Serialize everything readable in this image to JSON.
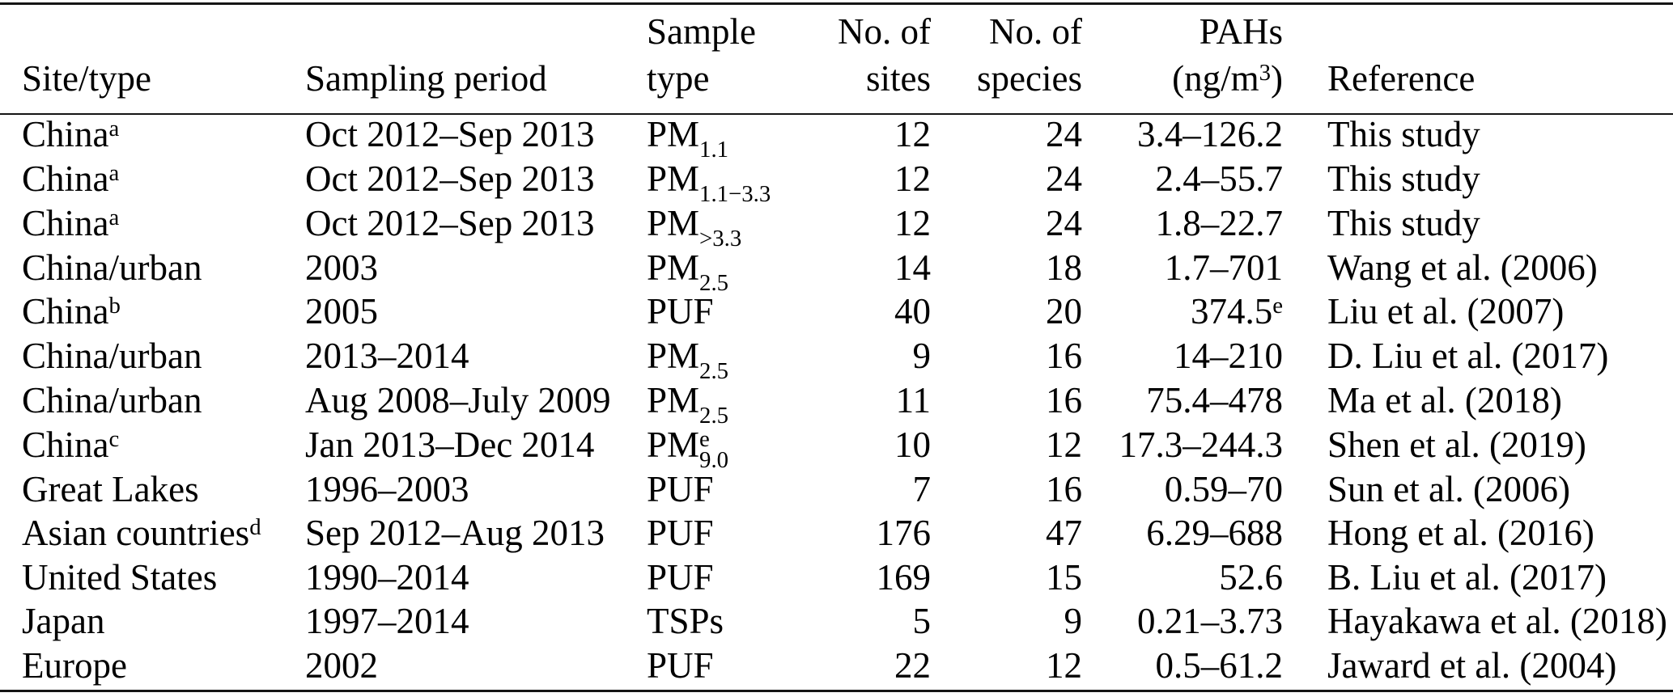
{
  "colors": {
    "text": "#000000",
    "rule": "#151515",
    "background": "#ffffff"
  },
  "table": {
    "columns": [
      {
        "id": "site",
        "line1": "",
        "line2": "Site/type",
        "align": "left"
      },
      {
        "id": "period",
        "line1": "",
        "line2": "Sampling period",
        "align": "left"
      },
      {
        "id": "sample",
        "line1": "Sample",
        "line2": "type",
        "align": "left"
      },
      {
        "id": "sites",
        "line1": "No. of",
        "line2": "sites",
        "align": "right"
      },
      {
        "id": "species",
        "line1": "No. of",
        "line2": "species",
        "align": "right"
      },
      {
        "id": "pahs",
        "line1": "PAHs",
        "line2_pre": "(ng/m",
        "line2_sup": "3",
        "line2_post": ")",
        "align": "right"
      },
      {
        "id": "reference",
        "line1": "",
        "line2": "Reference",
        "align": "left"
      }
    ],
    "rows": [
      {
        "site": {
          "text": "China",
          "sup": "a"
        },
        "period": "Oct 2012–Sep 2013",
        "sample": {
          "base": "PM",
          "sup": "",
          "sub": "1.1"
        },
        "sites": "12",
        "species": "24",
        "pahs": {
          "text": "3.4–126.2",
          "sup": ""
        },
        "reference": "This study"
      },
      {
        "site": {
          "text": "China",
          "sup": "a"
        },
        "period": "Oct 2012–Sep 2013",
        "sample": {
          "base": "PM",
          "sup": "",
          "sub": "1.1−3.3"
        },
        "sites": "12",
        "species": "24",
        "pahs": {
          "text": "2.4–55.7",
          "sup": ""
        },
        "reference": "This study"
      },
      {
        "site": {
          "text": "China",
          "sup": "a"
        },
        "period": "Oct 2012–Sep 2013",
        "sample": {
          "base": "PM",
          "sup": "",
          "sub": ">3.3"
        },
        "sites": "12",
        "species": "24",
        "pahs": {
          "text": "1.8–22.7",
          "sup": ""
        },
        "reference": "This study"
      },
      {
        "site": {
          "text": "China/urban",
          "sup": ""
        },
        "period": "2003",
        "sample": {
          "base": "PM",
          "sup": "",
          "sub": "2.5"
        },
        "sites": "14",
        "species": "18",
        "pahs": {
          "text": "1.7–701",
          "sup": ""
        },
        "reference": "Wang et al. (2006)"
      },
      {
        "site": {
          "text": "China",
          "sup": "b"
        },
        "period": "2005",
        "sample": {
          "base": "PUF",
          "sup": "",
          "sub": ""
        },
        "sites": "40",
        "species": "20",
        "pahs": {
          "text": "374.5",
          "sup": "e"
        },
        "reference": "Liu et al. (2007)"
      },
      {
        "site": {
          "text": "China/urban",
          "sup": ""
        },
        "period": "2013–2014",
        "sample": {
          "base": "PM",
          "sup": "",
          "sub": "2.5"
        },
        "sites": "9",
        "species": "16",
        "pahs": {
          "text": "14–210",
          "sup": ""
        },
        "reference": "D. Liu et al. (2017)"
      },
      {
        "site": {
          "text": "China/urban",
          "sup": ""
        },
        "period": "Aug 2008–July 2009",
        "sample": {
          "base": "PM",
          "sup": "",
          "sub": "2.5"
        },
        "sites": "11",
        "species": "16",
        "pahs": {
          "text": "75.4–478",
          "sup": ""
        },
        "reference": "Ma et al. (2018)"
      },
      {
        "site": {
          "text": "China",
          "sup": "c"
        },
        "period": "Jan 2013–Dec 2014",
        "sample": {
          "base": "PM",
          "sup": "e",
          "sub": "9.0"
        },
        "sites": "10",
        "species": "12",
        "pahs": {
          "text": "17.3–244.3",
          "sup": ""
        },
        "reference": "Shen et al. (2019)"
      },
      {
        "site": {
          "text": "Great Lakes",
          "sup": ""
        },
        "period": "1996–2003",
        "sample": {
          "base": "PUF",
          "sup": "",
          "sub": ""
        },
        "sites": "7",
        "species": "16",
        "pahs": {
          "text": "0.59–70",
          "sup": ""
        },
        "reference": "Sun et al. (2006)"
      },
      {
        "site": {
          "text": "Asian countries",
          "sup": "d"
        },
        "period": "Sep 2012–Aug 2013",
        "sample": {
          "base": "PUF",
          "sup": "",
          "sub": ""
        },
        "sites": "176",
        "species": "47",
        "pahs": {
          "text": "6.29–688",
          "sup": ""
        },
        "reference": "Hong et al. (2016)"
      },
      {
        "site": {
          "text": "United States",
          "sup": ""
        },
        "period": "1990–2014",
        "sample": {
          "base": "PUF",
          "sup": "",
          "sub": ""
        },
        "sites": "169",
        "species": "15",
        "pahs": {
          "text": "52.6",
          "sup": ""
        },
        "reference": "B. Liu et al. (2017)"
      },
      {
        "site": {
          "text": "Japan",
          "sup": ""
        },
        "period": "1997–2014",
        "sample": {
          "base": "TSPs",
          "sup": "",
          "sub": ""
        },
        "sites": "5",
        "species": "9",
        "pahs": {
          "text": "0.21–3.73",
          "sup": ""
        },
        "reference": "Hayakawa et al. (2018)"
      },
      {
        "site": {
          "text": "Europe",
          "sup": ""
        },
        "period": "2002",
        "sample": {
          "base": "PUF",
          "sup": "",
          "sub": ""
        },
        "sites": "22",
        "species": "12",
        "pahs": {
          "text": "0.5–61.2",
          "sup": ""
        },
        "reference": "Jaward et al. (2004)"
      }
    ]
  }
}
